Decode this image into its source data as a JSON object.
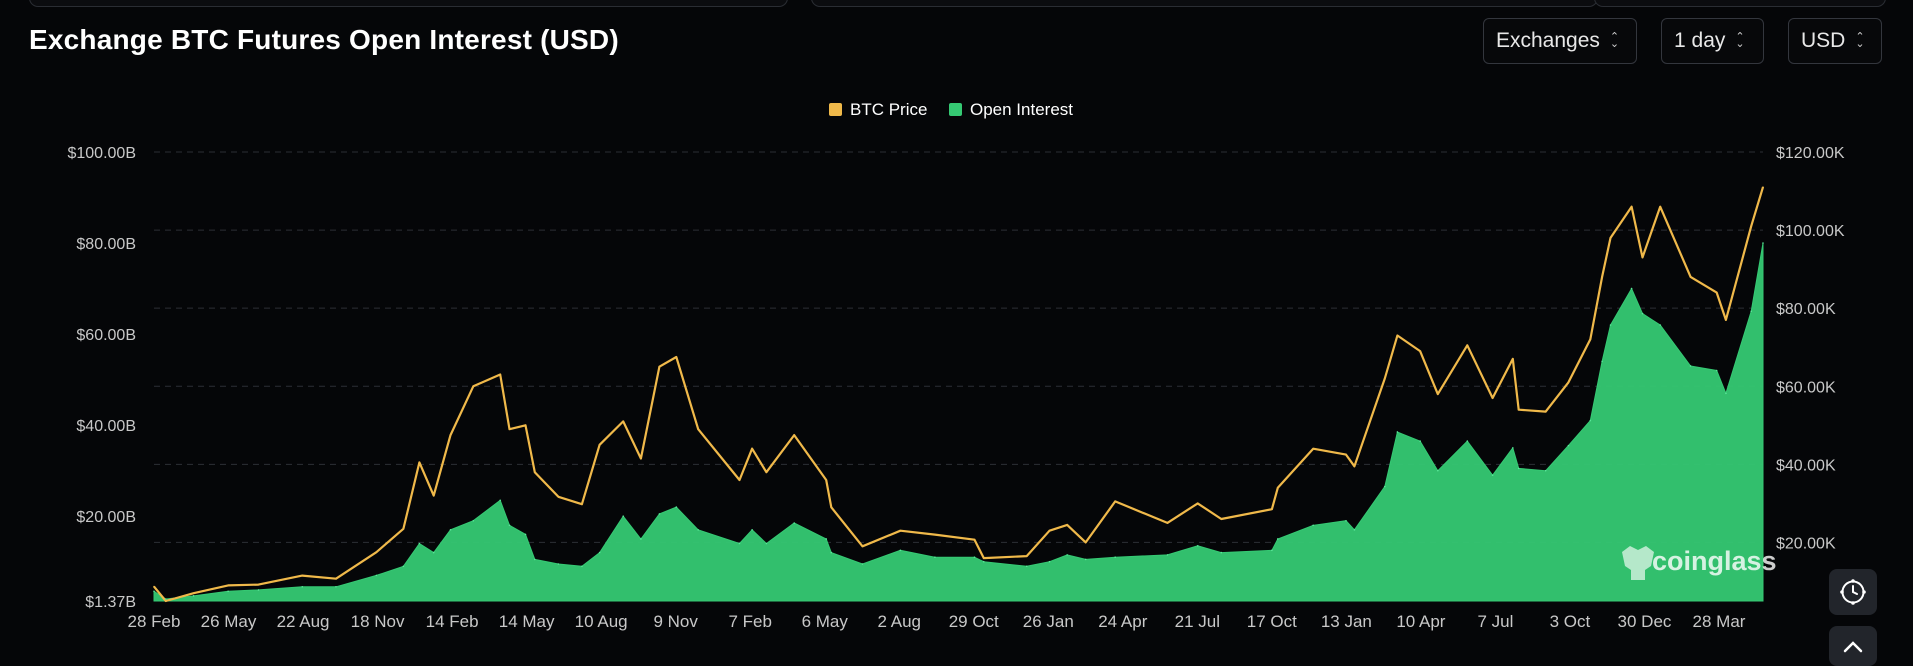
{
  "header": {
    "title": "Exchange BTC Futures Open Interest (USD)",
    "selects": {
      "exchanges": "Exchanges",
      "interval": "1 day",
      "currency": "USD"
    }
  },
  "colors": {
    "btc_price": "#f0b94a",
    "open_interest": "#35c973",
    "background": "#050608",
    "grid": "#2c2f35"
  },
  "watermark": "coinglass",
  "icons": [
    "settings-clock-icon",
    "scroll-up-icon",
    "coinglass-logo-icon",
    "chevron-updown-icon"
  ],
  "chart_data": {
    "type": "area",
    "title": "",
    "legend": [
      "BTC Price",
      "Open Interest"
    ],
    "legend_position": "top-center",
    "grid": true,
    "x_tick_labels": [
      "28 Feb",
      "26 May",
      "22 Aug",
      "18 Nov",
      "14 Feb",
      "14 May",
      "10 Aug",
      "9 Nov",
      "7 Feb",
      "6 May",
      "2 Aug",
      "29 Oct",
      "26 Jan",
      "24 Apr",
      "21 Jul",
      "17 Oct",
      "13 Jan",
      "10 Apr",
      "7 Jul",
      "3 Oct",
      "30 Dec",
      "28 Mar"
    ],
    "y_left_ticks": [
      "$1.37B",
      "$20.00B",
      "$40.00B",
      "$60.00B",
      "$80.00B",
      "$100.00B"
    ],
    "y_left_values": [
      1.37,
      20,
      40,
      60,
      80,
      100
    ],
    "y_left_unit": "USD billions",
    "y_left_range": [
      1.37,
      100
    ],
    "y_right_ticks": [
      "$20.00K",
      "$40.00K",
      "$60.00K",
      "$80.00K",
      "$100.00K",
      "$120.00K"
    ],
    "y_right_values": [
      20,
      40,
      60,
      80,
      100,
      120
    ],
    "y_right_unit": "USD thousands",
    "y_right_range": [
      5,
      120
    ],
    "series": [
      {
        "name": "BTC Price",
        "axis": "right",
        "type": "line",
        "x": [
          "2020-02-28",
          "2020-03-13",
          "2020-04-15",
          "2020-05-26",
          "2020-07-01",
          "2020-08-22",
          "2020-10-01",
          "2020-11-18",
          "2020-12-20",
          "2021-01-08",
          "2021-01-25",
          "2021-02-14",
          "2021-03-13",
          "2021-04-14",
          "2021-04-25",
          "2021-05-14",
          "2021-05-25",
          "2021-06-22",
          "2021-07-20",
          "2021-08-10",
          "2021-09-07",
          "2021-09-28",
          "2021-10-20",
          "2021-11-09",
          "2021-12-05",
          "2022-01-23",
          "2022-02-07",
          "2022-02-24",
          "2022-03-29",
          "2022-05-06",
          "2022-05-12",
          "2022-06-18",
          "2022-08-02",
          "2022-09-12",
          "2022-10-29",
          "2022-11-09",
          "2022-12-30",
          "2023-01-26",
          "2023-02-16",
          "2023-03-10",
          "2023-04-14",
          "2023-06-15",
          "2023-07-21",
          "2023-08-18",
          "2023-10-17",
          "2023-10-24",
          "2023-12-05",
          "2024-01-13",
          "2024-01-23",
          "2024-02-28",
          "2024-03-14",
          "2024-04-10",
          "2024-05-01",
          "2024-06-05",
          "2024-07-05",
          "2024-07-29",
          "2024-08-05",
          "2024-09-06",
          "2024-10-03",
          "2024-10-29",
          "2024-11-12",
          "2024-11-22",
          "2024-12-17",
          "2024-12-30",
          "2025-01-20",
          "2025-02-25",
          "2025-03-28",
          "2025-04-08",
          "2025-05-08",
          "2025-05-22"
        ],
        "values": [
          8.7,
          5.0,
          7.0,
          9.0,
          9.2,
          11.5,
          10.7,
          17.5,
          23.5,
          40.5,
          32.0,
          47.5,
          60.0,
          63.0,
          49.0,
          50.0,
          38.0,
          31.7,
          29.8,
          45.0,
          51.0,
          41.5,
          65.0,
          67.5,
          49.0,
          36.0,
          44.0,
          38.0,
          47.5,
          36.0,
          29.0,
          19.0,
          23.0,
          22.0,
          20.7,
          16.0,
          16.5,
          23.0,
          24.5,
          20.0,
          30.5,
          25.0,
          30.0,
          26.0,
          28.5,
          34.0,
          44.0,
          42.5,
          39.5,
          62.0,
          73.0,
          69.0,
          58.0,
          70.5,
          57.0,
          67.0,
          54.0,
          53.5,
          61.0,
          72.0,
          88.0,
          98.0,
          106.0,
          93.0,
          106.0,
          88.0,
          84.0,
          77.0,
          101.0,
          111.0
        ]
      },
      {
        "name": "Open Interest",
        "axis": "left",
        "type": "area",
        "x": [
          "2020-02-28",
          "2020-03-13",
          "2020-04-15",
          "2020-05-26",
          "2020-07-01",
          "2020-08-22",
          "2020-10-01",
          "2020-11-18",
          "2020-12-20",
          "2021-01-08",
          "2021-01-25",
          "2021-02-14",
          "2021-03-13",
          "2021-04-14",
          "2021-04-25",
          "2021-05-14",
          "2021-05-25",
          "2021-06-22",
          "2021-07-20",
          "2021-08-10",
          "2021-09-07",
          "2021-09-28",
          "2021-10-20",
          "2021-11-09",
          "2021-12-05",
          "2022-01-23",
          "2022-02-07",
          "2022-02-24",
          "2022-03-29",
          "2022-05-06",
          "2022-05-12",
          "2022-06-18",
          "2022-08-02",
          "2022-09-12",
          "2022-10-29",
          "2022-11-09",
          "2022-12-30",
          "2023-01-26",
          "2023-02-16",
          "2023-03-10",
          "2023-04-14",
          "2023-06-15",
          "2023-07-21",
          "2023-08-18",
          "2023-10-17",
          "2023-10-24",
          "2023-12-05",
          "2024-01-13",
          "2024-01-23",
          "2024-02-28",
          "2024-03-14",
          "2024-04-10",
          "2024-05-01",
          "2024-06-05",
          "2024-07-05",
          "2024-07-29",
          "2024-08-05",
          "2024-09-06",
          "2024-10-03",
          "2024-10-29",
          "2024-11-12",
          "2024-11-22",
          "2024-12-17",
          "2024-12-30",
          "2025-01-20",
          "2025-02-25",
          "2025-03-28",
          "2025-04-08",
          "2025-05-08",
          "2025-05-22"
        ],
        "values": [
          3.5,
          1.8,
          2.5,
          3.5,
          3.8,
          4.5,
          4.5,
          7.0,
          9.0,
          14.0,
          12.0,
          17.0,
          19.0,
          23.5,
          18.0,
          16.0,
          10.5,
          9.5,
          9.0,
          12.0,
          20.0,
          15.0,
          20.5,
          22.0,
          17.0,
          14.0,
          17.0,
          14.0,
          18.5,
          15.0,
          12.0,
          9.5,
          12.5,
          11.0,
          11.0,
          10.0,
          9.0,
          10.0,
          11.5,
          10.5,
          11.0,
          11.5,
          13.5,
          12.0,
          12.5,
          15.0,
          18.0,
          19.0,
          17.0,
          26.5,
          38.5,
          36.5,
          30.0,
          36.5,
          29.0,
          35.0,
          30.5,
          30.0,
          35.5,
          41.0,
          54.0,
          62.0,
          70.0,
          64.5,
          62.0,
          53.0,
          52.0,
          47.0,
          65.0,
          80.0
        ]
      }
    ]
  }
}
